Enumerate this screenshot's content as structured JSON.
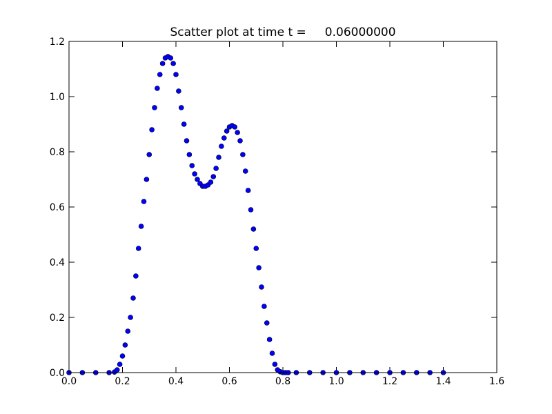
{
  "chart_data": {
    "type": "scatter",
    "title": "Scatter plot at time t =     0.06000000",
    "series": [
      {
        "color": "#0000ff",
        "x": [
          0,
          0.05,
          0.1,
          0.15,
          0.17,
          0.18,
          0.19,
          0.2,
          0.21,
          0.22,
          0.23,
          0.24,
          0.25,
          0.26,
          0.27,
          0.28,
          0.29,
          0.3,
          0.31,
          0.32,
          0.33,
          0.34,
          0.35,
          0.36,
          0.37,
          0.38,
          0.39,
          0.4,
          0.41,
          0.42,
          0.43,
          0.44,
          0.45,
          0.46,
          0.47,
          0.48,
          0.49,
          0.5,
          0.51,
          0.52,
          0.53,
          0.54,
          0.55,
          0.56,
          0.57,
          0.58,
          0.59,
          0.6,
          0.61,
          0.62,
          0.63,
          0.64,
          0.65,
          0.66,
          0.67,
          0.68,
          0.69,
          0.7,
          0.71,
          0.72,
          0.73,
          0.74,
          0.75,
          0.76,
          0.77,
          0.78,
          0.79,
          0.8,
          0.81,
          0.82,
          0.85,
          0.9,
          0.95,
          1.0,
          1.05,
          1.1,
          1.15,
          1.2,
          1.25,
          1.3,
          1.35,
          1.4
        ],
        "values": [
          0,
          0,
          0,
          0,
          0.002,
          0.01,
          0.03,
          0.06,
          0.1,
          0.15,
          0.2,
          0.27,
          0.35,
          0.45,
          0.53,
          0.62,
          0.7,
          0.79,
          0.88,
          0.96,
          1.03,
          1.08,
          1.12,
          1.14,
          1.145,
          1.14,
          1.12,
          1.08,
          1.02,
          0.96,
          0.9,
          0.84,
          0.79,
          0.75,
          0.72,
          0.7,
          0.685,
          0.675,
          0.675,
          0.68,
          0.69,
          0.71,
          0.74,
          0.78,
          0.82,
          0.85,
          0.875,
          0.89,
          0.895,
          0.89,
          0.87,
          0.84,
          0.79,
          0.73,
          0.66,
          0.59,
          0.52,
          0.45,
          0.38,
          0.31,
          0.24,
          0.18,
          0.12,
          0.07,
          0.03,
          0.01,
          0.003,
          0,
          0,
          0,
          0,
          0,
          0,
          0,
          0,
          0,
          0,
          0,
          0,
          0,
          0,
          0
        ]
      }
    ],
    "xlim": [
      0,
      1.6
    ],
    "xticks": [
      {
        "value": 0,
        "label": "0.0"
      },
      {
        "value": 0.2,
        "label": "0.2"
      },
      {
        "value": 0.4,
        "label": "0.4"
      },
      {
        "value": 0.6,
        "label": "0.6"
      },
      {
        "value": 0.8,
        "label": "0.8"
      },
      {
        "value": 1,
        "label": "1.0"
      },
      {
        "value": 1.2,
        "label": "1.2"
      },
      {
        "value": 1.4,
        "label": "1.4"
      },
      {
        "value": 1.6,
        "label": "1.6"
      }
    ],
    "ylim": [
      0,
      1.2
    ],
    "yticks": [
      {
        "value": 0,
        "label": "0.0"
      },
      {
        "value": 0.2,
        "label": "0.2"
      },
      {
        "value": 0.4,
        "label": "0.4"
      },
      {
        "value": 0.6,
        "label": "0.6"
      },
      {
        "value": 0.8,
        "label": "0.8"
      },
      {
        "value": 1,
        "label": "1.0"
      },
      {
        "value": 1.2,
        "label": "1.2"
      }
    ]
  }
}
